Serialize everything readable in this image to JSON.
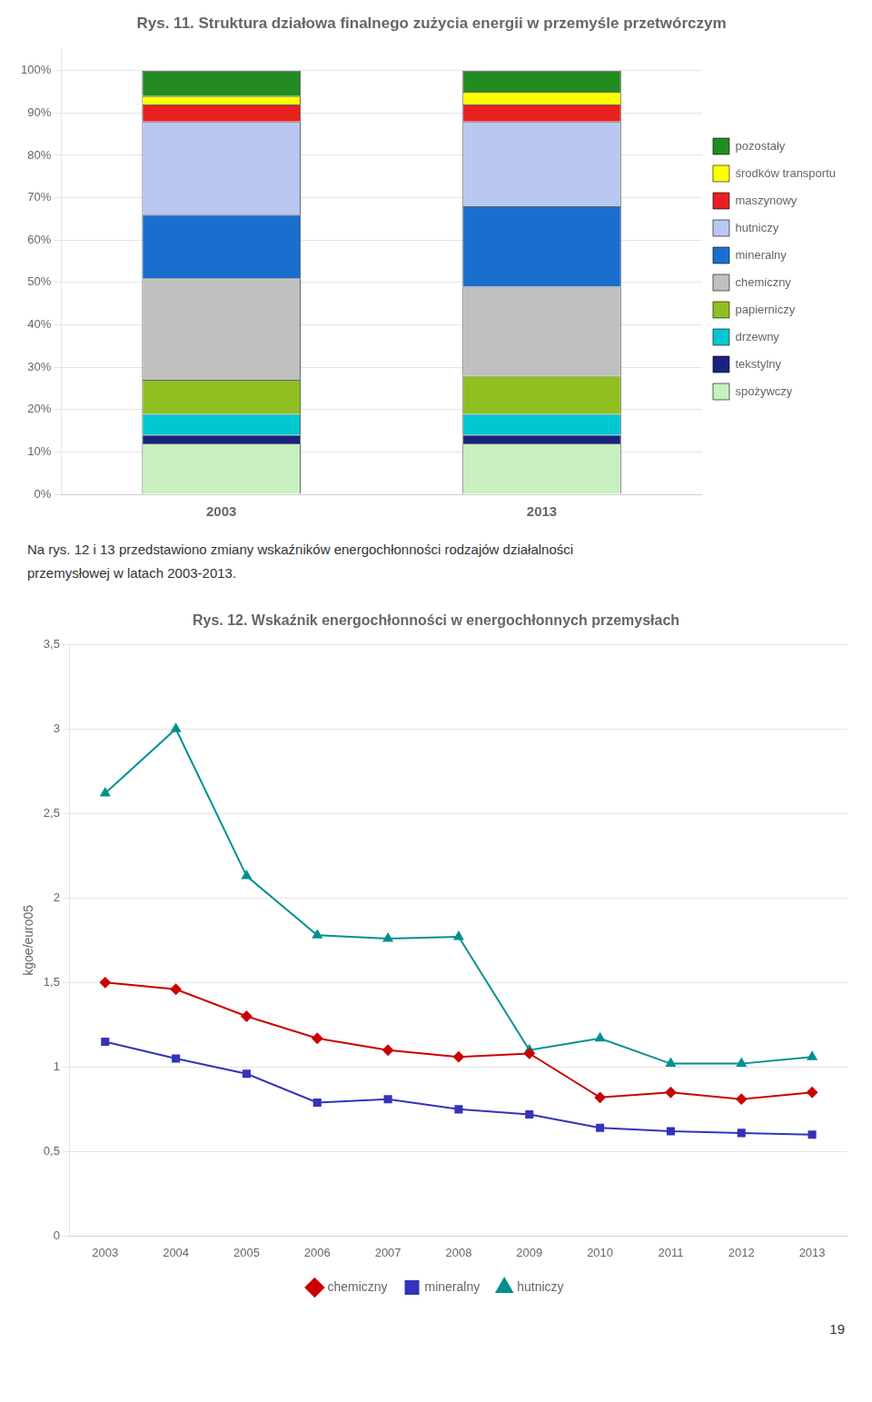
{
  "chart_data": [
    {
      "type": "bar",
      "title": "Rys. 11. Struktura działowa finalnego zużycia energii w przemyśle przetwórczym",
      "categories": [
        "2003",
        "2013"
      ],
      "series": [
        {
          "name": "spożywczy",
          "color": "#c8f0c0",
          "values": [
            12,
            12
          ]
        },
        {
          "name": "tekstylny",
          "color": "#1a237e",
          "values": [
            2,
            2
          ]
        },
        {
          "name": "drzewny",
          "color": "#00c8d0",
          "values": [
            5,
            5
          ]
        },
        {
          "name": "papierniczy",
          "color": "#90c020",
          "values": [
            8,
            9
          ]
        },
        {
          "name": "chemiczny",
          "color": "#c0c0c0",
          "values": [
            24,
            21
          ]
        },
        {
          "name": "mineralny",
          "color": "#1a6fce",
          "values": [
            15,
            19
          ]
        },
        {
          "name": "hutniczy",
          "color": "#b8c8f0",
          "values": [
            22,
            20
          ]
        },
        {
          "name": "maszynowy",
          "color": "#e82020",
          "values": [
            4,
            4
          ]
        },
        {
          "name": "środków transportu",
          "color": "#ffff00",
          "values": [
            2,
            3
          ]
        },
        {
          "name": "pozostały",
          "color": "#228b22",
          "values": [
            6,
            5
          ]
        }
      ],
      "stacked": true,
      "ylim": [
        0,
        105
      ],
      "yticks": [
        {
          "value": 0,
          "label": "0%"
        },
        {
          "value": 10,
          "label": "10%"
        },
        {
          "value": 20,
          "label": "20%"
        },
        {
          "value": 30,
          "label": "30%"
        },
        {
          "value": 40,
          "label": "40%"
        },
        {
          "value": 50,
          "label": "50%"
        },
        {
          "value": 60,
          "label": "60%"
        },
        {
          "value": 70,
          "label": "70%"
        },
        {
          "value": 80,
          "label": "80%"
        },
        {
          "value": 90,
          "label": "90%"
        },
        {
          "value": 100,
          "label": "100%"
        }
      ],
      "grid": true,
      "legend": "right",
      "annotations": [
        "Na rys. 12 i 13 przedstawiono zmiany wskaźników energochłonności rodzajów działalności",
        "przemysłowej w latach 2003-2013."
      ]
    },
    {
      "type": "line",
      "title": "Rys. 12. Wskaźnik energochłonności w energochłonnych przemysłach",
      "x": [
        2003,
        2004,
        2005,
        2006,
        2007,
        2008,
        2009,
        2010,
        2011,
        2012,
        2013
      ],
      "series": [
        {
          "name": "chemiczny",
          "color": "#cc0000",
          "marker": "diamond",
          "values": [
            1.5,
            1.46,
            1.3,
            1.17,
            1.1,
            1.06,
            1.08,
            0.82,
            0.85,
            0.81,
            0.85
          ]
        },
        {
          "name": "mineralny",
          "color": "#3333bb",
          "marker": "square",
          "values": [
            1.15,
            1.05,
            0.96,
            0.79,
            0.81,
            0.75,
            0.72,
            0.64,
            0.62,
            0.61,
            0.6
          ]
        },
        {
          "name": "hutniczy",
          "color": "#009090",
          "marker": "triangle",
          "values": [
            2.62,
            3.0,
            2.13,
            1.78,
            1.76,
            1.77,
            1.1,
            1.17,
            1.02,
            1.02,
            1.06
          ]
        }
      ],
      "xlim": [
        2002.5,
        2013.5
      ],
      "xticks": [
        2003,
        2004,
        2005,
        2006,
        2007,
        2008,
        2009,
        2010,
        2011,
        2012,
        2013
      ],
      "ylim": [
        0,
        3.5
      ],
      "yticks": [
        0,
        {
          "value": 0.5,
          "label": "0,5"
        },
        1,
        {
          "value": 1.5,
          "label": "1,5"
        },
        2,
        {
          "value": 2.5,
          "label": "2,5"
        },
        3,
        {
          "value": 3.5,
          "label": "3,5"
        }
      ],
      "ylabel": "kgoe/euro05",
      "grid": true,
      "legend": "bottom",
      "annotations": [
        "19"
      ]
    }
  ]
}
